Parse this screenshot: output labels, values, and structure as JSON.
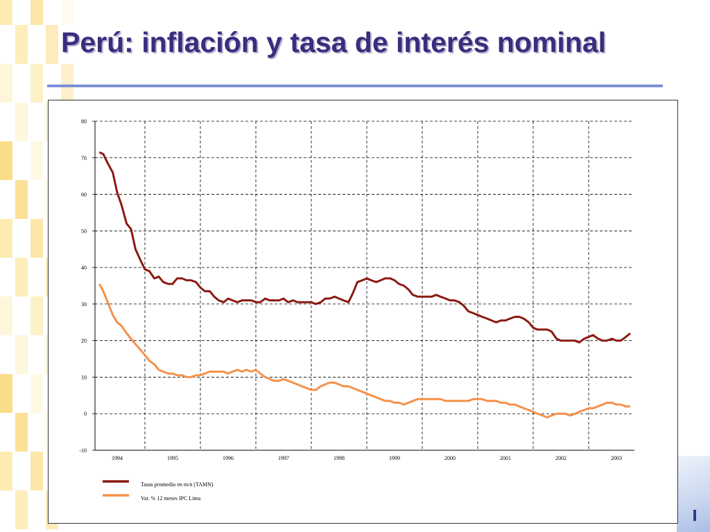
{
  "slide": {
    "title": "Perú: inflación y tasa de interés nominal"
  },
  "theme": {
    "title_color": "#3b2c7d",
    "rule_color": "#7d90d6",
    "deco_colors": [
      "#fde9a8",
      "#fbd87a",
      "#fef5d6"
    ]
  },
  "chart_data": {
    "type": "line",
    "title": "",
    "xlabel": "",
    "ylabel": "",
    "ylim": [
      -10,
      80
    ],
    "yticks": [
      -10,
      0,
      10,
      20,
      30,
      40,
      50,
      60,
      70,
      80
    ],
    "xlim": [
      1993.6,
      2003.3
    ],
    "xticks": [
      "1994",
      "1995",
      "1996",
      "1997",
      "1998",
      "1999",
      "2000",
      "2001",
      "2002",
      "2003"
    ],
    "grid": true,
    "legend_position": "bottom-left",
    "series": [
      {
        "name": "Tasas promedio en m/n (TAMN)",
        "color": "#8b1a12",
        "x": [
          1993.68,
          1993.75,
          1993.83,
          1993.92,
          1994.0,
          1994.08,
          1994.17,
          1994.25,
          1994.33,
          1994.42,
          1994.5,
          1994.58,
          1994.67,
          1994.75,
          1994.83,
          1994.92,
          1995.0,
          1995.08,
          1995.17,
          1995.25,
          1995.33,
          1995.42,
          1995.5,
          1995.58,
          1995.67,
          1995.75,
          1995.83,
          1995.92,
          1996.0,
          1996.08,
          1996.17,
          1996.25,
          1996.33,
          1996.42,
          1996.5,
          1996.58,
          1996.67,
          1996.75,
          1996.83,
          1996.92,
          1997.0,
          1997.08,
          1997.17,
          1997.25,
          1997.33,
          1997.42,
          1997.5,
          1997.58,
          1997.67,
          1997.75,
          1997.83,
          1997.92,
          1998.0,
          1998.08,
          1998.17,
          1998.25,
          1998.33,
          1998.42,
          1998.5,
          1998.58,
          1998.67,
          1998.75,
          1998.83,
          1998.92,
          1999.0,
          1999.08,
          1999.17,
          1999.25,
          1999.33,
          1999.42,
          1999.5,
          1999.58,
          1999.67,
          1999.75,
          1999.83,
          1999.92,
          2000.0,
          2000.08,
          2000.17,
          2000.25,
          2000.33,
          2000.42,
          2000.5,
          2000.58,
          2000.67,
          2000.75,
          2000.83,
          2000.92,
          2001.0,
          2001.08,
          2001.17,
          2001.25,
          2001.33,
          2001.42,
          2001.5,
          2001.58,
          2001.67,
          2001.75,
          2001.83,
          2001.92,
          2002.0,
          2002.08,
          2002.17,
          2002.25,
          2002.33,
          2002.42,
          2002.5,
          2002.58,
          2002.67,
          2002.75,
          2002.83,
          2002.92,
          2003.0,
          2003.08,
          2003.17,
          2003.25
        ],
        "y": [
          71.5,
          71.0,
          68.5,
          66.0,
          60.5,
          57.0,
          52.0,
          50.5,
          45.0,
          42.0,
          39.5,
          39.0,
          37.0,
          37.5,
          36.0,
          35.5,
          35.5,
          37.0,
          37.0,
          36.5,
          36.5,
          36.0,
          34.5,
          33.5,
          33.5,
          32.0,
          31.0,
          30.5,
          31.5,
          31.0,
          30.5,
          31.0,
          31.0,
          31.0,
          30.5,
          30.5,
          31.5,
          31.0,
          31.0,
          31.0,
          31.5,
          30.5,
          31.0,
          30.5,
          30.5,
          30.5,
          30.5,
          30.0,
          30.5,
          31.5,
          31.5,
          32.0,
          31.5,
          31.0,
          30.5,
          33.0,
          36.0,
          36.5,
          37.0,
          36.5,
          36.0,
          36.5,
          37.0,
          37.0,
          36.5,
          35.5,
          35.0,
          34.0,
          32.5,
          32.0,
          32.0,
          32.0,
          32.0,
          32.5,
          32.0,
          31.5,
          31.0,
          31.0,
          30.5,
          29.5,
          28.0,
          27.5,
          27.0,
          26.5,
          26.0,
          25.5,
          25.0,
          25.5,
          25.5,
          26.0,
          26.5,
          26.5,
          26.0,
          25.0,
          23.5,
          23.0,
          23.0,
          23.0,
          22.5,
          20.5,
          20.0,
          20.0,
          20.0,
          20.0,
          19.5,
          20.5,
          21.0,
          21.5,
          20.5,
          20.0,
          20.0,
          20.5,
          20.0,
          20.0,
          21.0,
          22.0
        ]
      },
      {
        "name": "Var. % 12 meses IPC Lima",
        "color": "#f5914a",
        "x": [
          1993.68,
          1993.75,
          1993.83,
          1993.92,
          1994.0,
          1994.08,
          1994.17,
          1994.25,
          1994.33,
          1994.42,
          1994.5,
          1994.58,
          1994.67,
          1994.75,
          1994.83,
          1994.92,
          1995.0,
          1995.08,
          1995.17,
          1995.25,
          1995.33,
          1995.42,
          1995.5,
          1995.58,
          1995.67,
          1995.75,
          1995.83,
          1995.92,
          1996.0,
          1996.08,
          1996.17,
          1996.25,
          1996.33,
          1996.42,
          1996.5,
          1996.58,
          1996.67,
          1996.75,
          1996.83,
          1996.92,
          1997.0,
          1997.08,
          1997.17,
          1997.25,
          1997.33,
          1997.42,
          1997.5,
          1997.58,
          1997.67,
          1997.75,
          1997.83,
          1997.92,
          1998.0,
          1998.08,
          1998.17,
          1998.25,
          1998.33,
          1998.42,
          1998.5,
          1998.58,
          1998.67,
          1998.75,
          1998.83,
          1998.92,
          1999.0,
          1999.08,
          1999.17,
          1999.25,
          1999.33,
          1999.42,
          1999.5,
          1999.58,
          1999.67,
          1999.75,
          1999.83,
          1999.92,
          2000.0,
          2000.08,
          2000.17,
          2000.25,
          2000.33,
          2000.42,
          2000.5,
          2000.58,
          2000.67,
          2000.75,
          2000.83,
          2000.92,
          2001.0,
          2001.08,
          2001.17,
          2001.25,
          2001.33,
          2001.42,
          2001.5,
          2001.58,
          2001.67,
          2001.75,
          2001.83,
          2001.92,
          2002.0,
          2002.08,
          2002.17,
          2002.25,
          2002.33,
          2002.42,
          2002.5,
          2002.58,
          2002.67,
          2002.75,
          2002.83,
          2002.92,
          2003.0,
          2003.08,
          2003.17,
          2003.25
        ],
        "y": [
          35.5,
          33.5,
          30.5,
          27.0,
          25.0,
          24.0,
          22.0,
          20.5,
          19.0,
          17.5,
          16.0,
          14.5,
          13.5,
          12.0,
          11.5,
          11.0,
          11.0,
          10.5,
          10.5,
          10.0,
          10.0,
          10.5,
          10.5,
          11.0,
          11.5,
          11.5,
          11.5,
          11.5,
          11.0,
          11.5,
          12.0,
          11.5,
          12.0,
          11.5,
          12.0,
          11.0,
          10.0,
          9.5,
          9.0,
          9.0,
          9.5,
          9.0,
          8.5,
          8.0,
          7.5,
          7.0,
          6.5,
          6.5,
          7.5,
          8.0,
          8.5,
          8.5,
          8.0,
          7.5,
          7.5,
          7.0,
          6.5,
          6.0,
          5.5,
          5.0,
          4.5,
          4.0,
          3.5,
          3.5,
          3.0,
          3.0,
          2.5,
          3.0,
          3.5,
          4.0,
          4.0,
          4.0,
          4.0,
          4.0,
          4.0,
          3.5,
          3.5,
          3.5,
          3.5,
          3.5,
          3.5,
          4.0,
          4.0,
          4.0,
          3.5,
          3.5,
          3.5,
          3.0,
          3.0,
          2.5,
          2.5,
          2.0,
          1.5,
          1.0,
          0.5,
          0.0,
          -0.5,
          -1.0,
          -0.5,
          0.0,
          0.0,
          0.0,
          -0.5,
          0.0,
          0.5,
          1.0,
          1.5,
          1.5,
          2.0,
          2.5,
          3.0,
          3.0,
          2.5,
          2.5,
          2.0,
          2.0
        ]
      }
    ]
  }
}
